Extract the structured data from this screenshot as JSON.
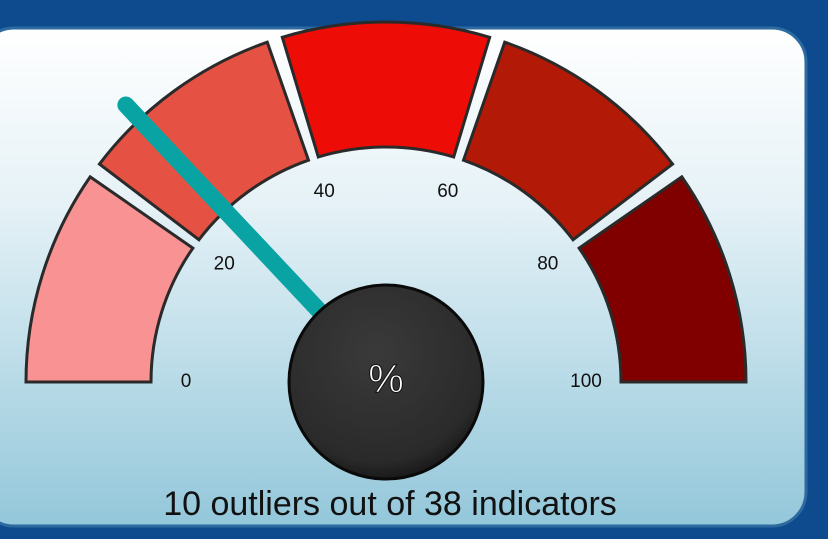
{
  "chart_data": {
    "type": "gauge",
    "value": 26,
    "ylim": [
      0,
      100
    ],
    "yticks": [
      0,
      20,
      40,
      60,
      80,
      100
    ],
    "bands": [
      {
        "from": 0,
        "to": 20,
        "color": "#f99393"
      },
      {
        "from": 20,
        "to": 40,
        "color": "#e55243"
      },
      {
        "from": 40,
        "to": 60,
        "color": "#ee0c06"
      },
      {
        "from": 60,
        "to": 80,
        "color": "#b21906"
      },
      {
        "from": 80,
        "to": 100,
        "color": "#800000"
      }
    ],
    "needle_color": "#0aa3a3",
    "center_label": "%",
    "caption": "10 outliers out of 38 indicators"
  }
}
